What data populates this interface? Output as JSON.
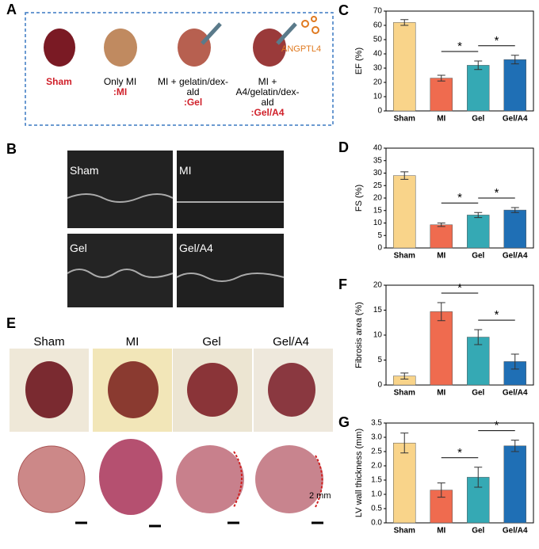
{
  "panels": {
    "A": {
      "label": "A",
      "groups": [
        {
          "name": "Sham"
        },
        {
          "name": "Only MI",
          "abbr": ":MI"
        },
        {
          "name": "MI + gelatin/dex-ald",
          "abbr": ":Gel"
        },
        {
          "name": "MI + A4/gelatin/dex-ald",
          "abbr": ":Gel/A4"
        }
      ],
      "drug": "ANGPTL4"
    },
    "B": {
      "label": "B",
      "images": [
        "Sham",
        "MI",
        "Gel",
        "Gel/A4"
      ]
    },
    "E": {
      "label": "E",
      "columns": [
        "Sham",
        "MI",
        "Gel",
        "Gel/A4"
      ],
      "scale": "2 mm"
    }
  },
  "chart_data": [
    {
      "type": "bar",
      "panel": "C",
      "ylabel": "EF (%)",
      "categories": [
        "Sham",
        "MI",
        "Gel",
        "Gel/A4"
      ],
      "values": [
        62,
        23,
        32,
        36
      ],
      "errors": [
        2,
        2,
        3,
        3
      ],
      "colors": [
        "#f9d48a",
        "#ef6b4f",
        "#35a9b4",
        "#1f6fb5"
      ],
      "ylim": [
        0,
        70
      ],
      "yticks": [
        0,
        10,
        20,
        30,
        40,
        50,
        60,
        70
      ],
      "significance": [
        {
          "label": "*",
          "from": 1,
          "to": 2
        },
        {
          "label": "*",
          "from": 2,
          "to": 3
        }
      ]
    },
    {
      "type": "bar",
      "panel": "D",
      "ylabel": "FS (%)",
      "categories": [
        "Sham",
        "MI",
        "Gel",
        "Gel/A4"
      ],
      "values": [
        29,
        9.3,
        13.2,
        15.2
      ],
      "errors": [
        1.5,
        0.7,
        1,
        1
      ],
      "colors": [
        "#f9d48a",
        "#ef6b4f",
        "#35a9b4",
        "#1f6fb5"
      ],
      "ylim": [
        0,
        40
      ],
      "yticks": [
        0,
        5,
        10,
        15,
        20,
        25,
        30,
        35,
        40
      ],
      "significance": [
        {
          "label": "*",
          "from": 1,
          "to": 2
        },
        {
          "label": "*",
          "from": 2,
          "to": 3
        }
      ]
    },
    {
      "type": "bar",
      "panel": "F",
      "ylabel": "Fibrosis area (%)",
      "categories": [
        "Sham",
        "MI",
        "Gel",
        "Gel/A4"
      ],
      "values": [
        1.8,
        14.7,
        9.6,
        4.7
      ],
      "errors": [
        0.6,
        1.8,
        1.5,
        1.5
      ],
      "colors": [
        "#f9d48a",
        "#ef6b4f",
        "#35a9b4",
        "#1f6fb5"
      ],
      "ylim": [
        0,
        20
      ],
      "yticks": [
        0,
        5,
        10,
        15,
        20
      ],
      "significance": [
        {
          "label": "*",
          "from": 1,
          "to": 2
        },
        {
          "label": "*",
          "from": 2,
          "to": 3
        }
      ]
    },
    {
      "type": "bar",
      "panel": "G",
      "ylabel": "LV wall thickness (mm)",
      "categories": [
        "Sham",
        "MI",
        "Gel",
        "Gel/A4"
      ],
      "values": [
        2.8,
        1.15,
        1.6,
        2.7
      ],
      "errors": [
        0.35,
        0.25,
        0.35,
        0.2
      ],
      "colors": [
        "#f9d48a",
        "#ef6b4f",
        "#35a9b4",
        "#1f6fb5"
      ],
      "ylim": [
        0,
        3.5
      ],
      "yticks": [
        {
          "value": 0,
          "label": "0.0"
        },
        0.5,
        {
          "value": 1,
          "label": "1.0"
        },
        1.5,
        {
          "value": 2,
          "label": "2.0"
        },
        2.5,
        {
          "value": 3,
          "label": "3.0"
        },
        3.5
      ],
      "significance": [
        {
          "label": "*",
          "from": 1,
          "to": 2
        },
        {
          "label": "*",
          "from": 2,
          "to": 3
        }
      ]
    }
  ]
}
